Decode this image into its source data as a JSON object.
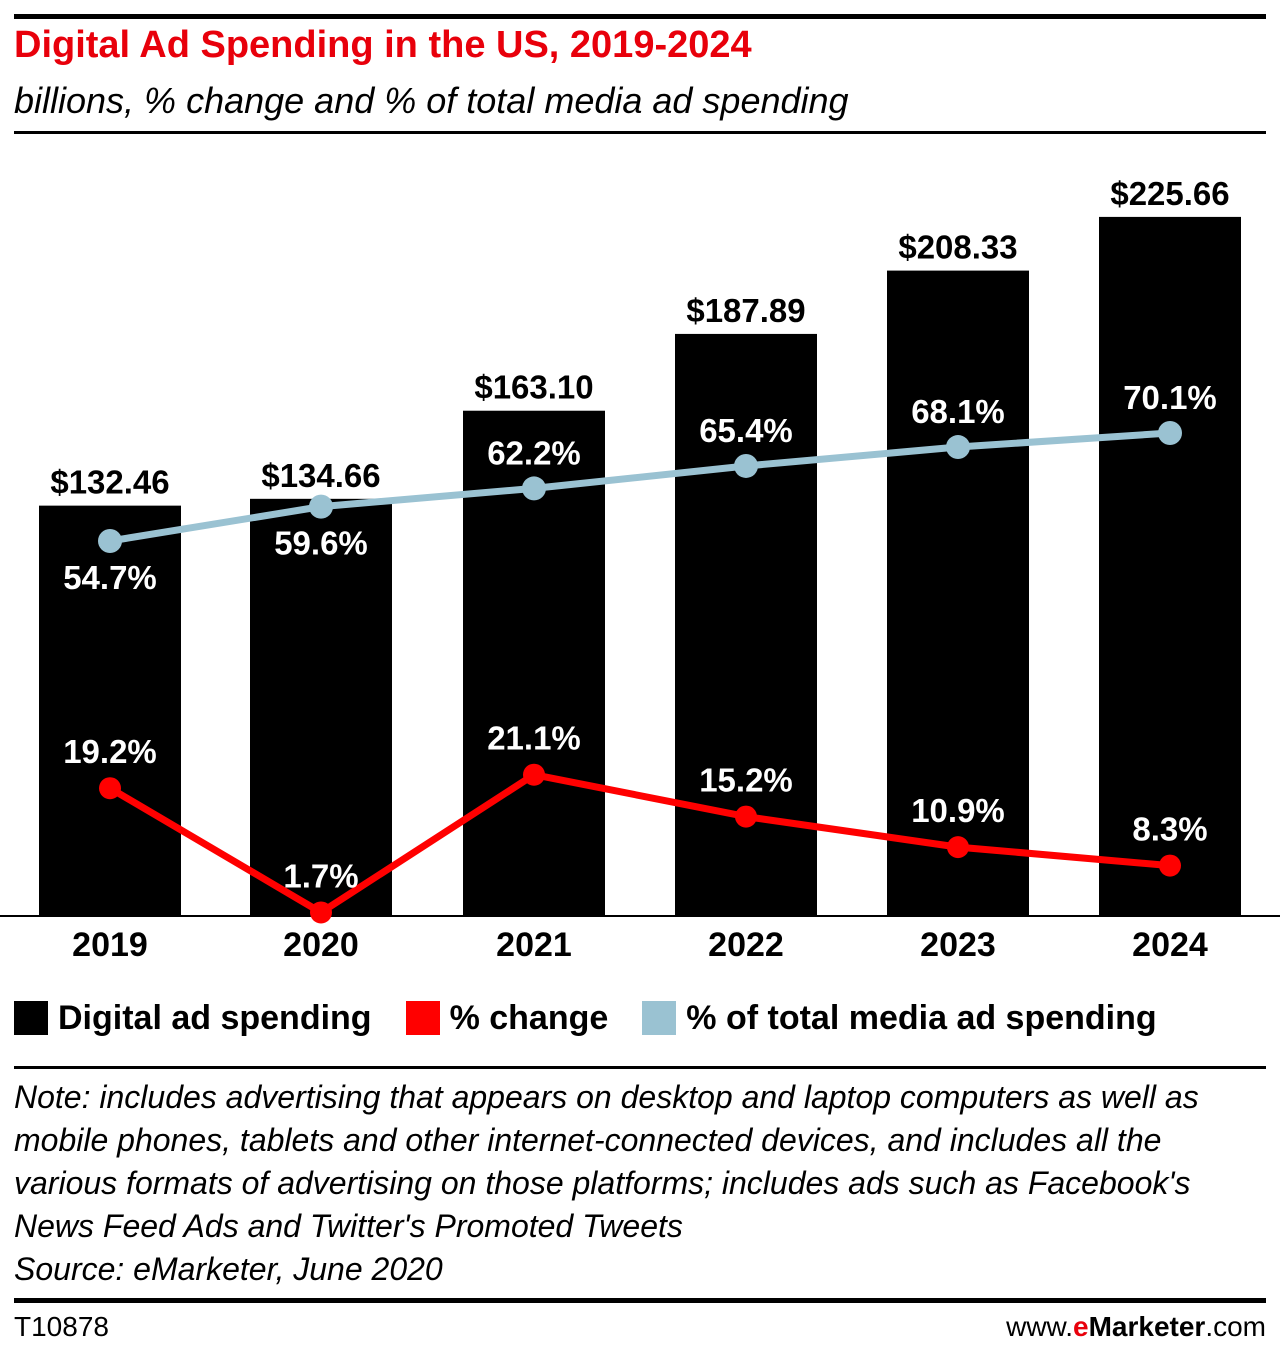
{
  "header": {
    "title": "Digital Ad Spending in the US, 2019-2024",
    "subtitle": "billions, % change and % of total media ad spending"
  },
  "chart_data": {
    "type": "bar",
    "categories": [
      "2019",
      "2020",
      "2021",
      "2022",
      "2023",
      "2024"
    ],
    "series": [
      {
        "name": "Digital ad spending",
        "kind": "bar",
        "values": [
          132.46,
          134.66,
          163.1,
          187.89,
          208.33,
          225.66
        ],
        "labels": [
          "$132.46",
          "$134.66",
          "$163.10",
          "$187.89",
          "$208.33",
          "$225.66"
        ],
        "color": "#000000"
      },
      {
        "name": "% change",
        "kind": "line",
        "values": [
          19.2,
          1.7,
          21.1,
          15.2,
          10.9,
          8.3
        ],
        "labels": [
          "19.2%",
          "1.7%",
          "21.1%",
          "15.2%",
          "10.9%",
          "8.3%"
        ],
        "color": "#ff0000"
      },
      {
        "name": "% of total media ad spending",
        "kind": "line",
        "values": [
          54.7,
          59.6,
          62.2,
          65.4,
          68.1,
          70.1
        ],
        "labels": [
          "54.7%",
          "59.6%",
          "62.2%",
          "65.4%",
          "68.1%",
          "70.1%"
        ],
        "color": "#9ac2d2"
      }
    ],
    "legend_position": "bottom",
    "grid": false
  },
  "legend": {
    "items": [
      {
        "label": "Digital ad spending",
        "color": "#000000"
      },
      {
        "label": "% change",
        "color": "#ff0000"
      },
      {
        "label": "% of total media ad spending",
        "color": "#9ac2d2"
      }
    ]
  },
  "footer": {
    "note": "Note: includes advertising that appears on desktop and laptop computers as well as mobile phones, tablets and other internet-connected devices, and includes all the various formats of advertising on those platforms; includes ads such as Facebook's News Feed Ads and Twitter's Promoted Tweets",
    "source": "Source: eMarketer, June 2020",
    "chart_id": "T10878",
    "site_prefix": "www.",
    "site_brand_e": "e",
    "site_brand_rest": "Marketer",
    "site_suffix": ".com"
  }
}
